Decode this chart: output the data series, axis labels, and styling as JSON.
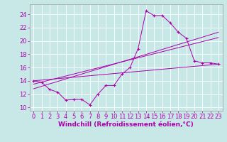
{
  "background_color": "#c8e8e8",
  "grid_color": "#ffffff",
  "line_color": "#aa00aa",
  "xlabel": "Windchill (Refroidissement éolien,°C)",
  "ylabel_ticks": [
    10,
    12,
    14,
    16,
    18,
    20,
    22,
    24
  ],
  "xlim": [
    -0.5,
    23.5
  ],
  "ylim": [
    9.5,
    25.5
  ],
  "xticks": [
    0,
    1,
    2,
    3,
    4,
    5,
    6,
    7,
    8,
    9,
    10,
    11,
    12,
    13,
    14,
    15,
    16,
    17,
    18,
    19,
    20,
    21,
    22,
    23
  ],
  "series1_x": [
    0,
    1,
    2,
    3,
    4,
    5,
    6,
    7,
    8,
    9,
    10,
    11,
    12,
    13,
    14,
    15,
    16,
    17,
    18,
    19,
    20,
    21,
    22,
    23
  ],
  "series1_y": [
    14.0,
    13.8,
    12.7,
    12.3,
    11.1,
    11.2,
    11.2,
    10.4,
    12.0,
    13.3,
    13.3,
    15.0,
    16.0,
    18.8,
    24.5,
    23.8,
    23.8,
    22.7,
    21.3,
    20.4,
    17.0,
    16.7,
    16.7,
    16.5
  ],
  "series2_x": [
    0,
    23
  ],
  "series2_y": [
    14.0,
    16.5
  ],
  "series3_x": [
    0,
    23
  ],
  "series3_y": [
    13.5,
    20.5
  ],
  "series4_x": [
    0,
    23
  ],
  "series4_y": [
    12.8,
    21.3
  ],
  "font_size": 7,
  "xlabel_fontsize": 6.5,
  "tick_fontsize": 6.0
}
